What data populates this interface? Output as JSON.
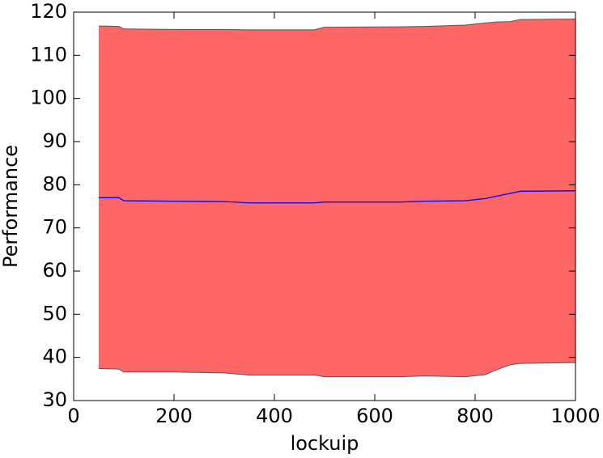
{
  "chart_data": {
    "type": "line",
    "xlabel": "lockuip",
    "ylabel": "Performance",
    "x": [
      50,
      90,
      100,
      200,
      300,
      350,
      480,
      500,
      650,
      700,
      780,
      820,
      840,
      870,
      890,
      1000
    ],
    "series": [
      {
        "color": "#0000ff",
        "values": [
          77,
          77,
          76.3,
          76.2,
          76.1,
          75.8,
          75.8,
          76,
          76,
          76.2,
          76.3,
          76.8,
          77.3,
          78,
          78.5,
          78.6
        ],
        "band": {
          "color": "#ff6666",
          "edge_color": "#555555",
          "upper": [
            116.8,
            116.7,
            116.1,
            116,
            116,
            115.9,
            115.9,
            116.5,
            116.6,
            116.7,
            117,
            117.5,
            117.7,
            117.8,
            118.3,
            118.4
          ],
          "lower": [
            37.4,
            37.3,
            36.6,
            36.6,
            36.4,
            35.9,
            35.9,
            35.5,
            35.5,
            35.7,
            35.5,
            36,
            37,
            38.3,
            38.6,
            38.8
          ]
        }
      }
    ],
    "xlim": [
      0,
      1000
    ],
    "xticks": [
      0,
      200,
      400,
      600,
      800,
      1000
    ],
    "ylim": [
      30,
      120
    ],
    "yticks": [
      30,
      40,
      50,
      60,
      70,
      80,
      90,
      100,
      110,
      120
    ],
    "grid": false
  }
}
